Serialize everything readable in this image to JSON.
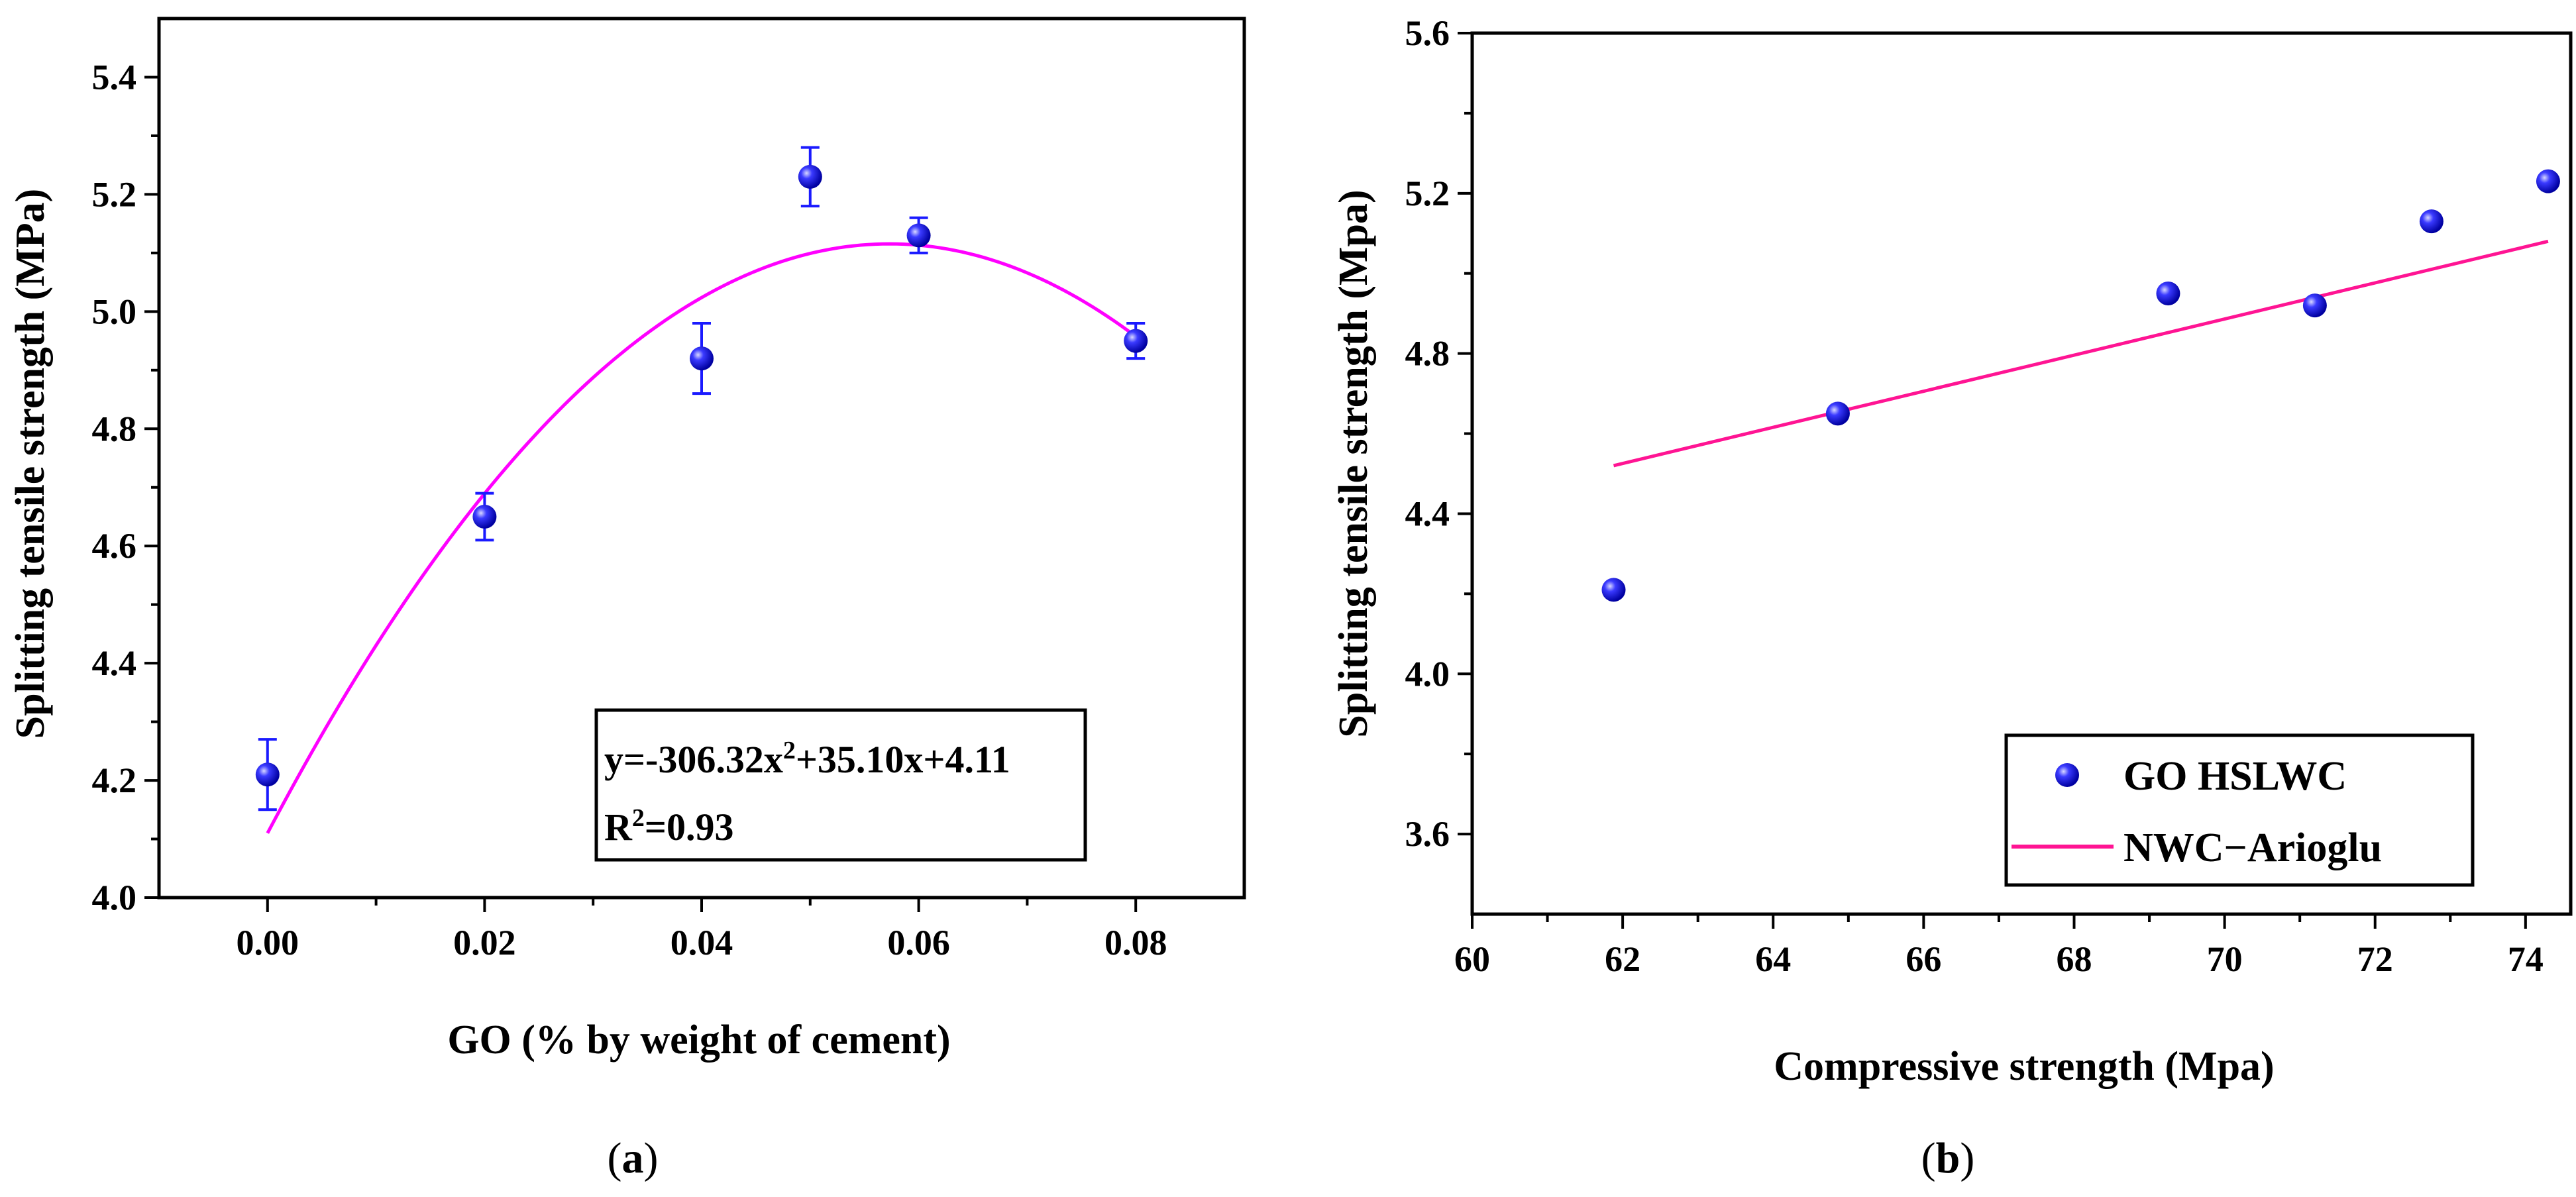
{
  "chart_data": [
    {
      "panel": "(a)",
      "panel_letter": "a",
      "type": "scatter",
      "xlabel": "GO (% by weight of cement)",
      "ylabel": "Splitting tensile strength (MPa)",
      "xlim": [
        -0.01,
        0.09
      ],
      "ylim": [
        4.0,
        5.5
      ],
      "xticks": [
        0.0,
        0.02,
        0.04,
        0.06,
        0.08
      ],
      "xtick_labels": [
        "0.00",
        "0.02",
        "0.04",
        "0.06",
        "0.08"
      ],
      "yticks": [
        4.0,
        4.2,
        4.4,
        4.6,
        4.8,
        5.0,
        5.2,
        5.4
      ],
      "ytick_labels": [
        "4.0",
        "4.2",
        "4.4",
        "4.6",
        "4.8",
        "5.0",
        "5.2",
        "5.4"
      ],
      "points": [
        {
          "x": 0.0,
          "y": 4.21,
          "err": 0.06
        },
        {
          "x": 0.02,
          "y": 4.65,
          "err": 0.04
        },
        {
          "x": 0.04,
          "y": 4.92,
          "err": 0.06
        },
        {
          "x": 0.05,
          "y": 5.23,
          "err": 0.05
        },
        {
          "x": 0.06,
          "y": 5.13,
          "err": 0.03
        },
        {
          "x": 0.08,
          "y": 4.95,
          "err": 0.03
        }
      ],
      "fit": {
        "a": -306.32,
        "b": 35.1,
        "c": 4.11,
        "x_range": [
          0.0,
          0.08
        ],
        "color": "#ff00ff",
        "equation_prefix": "y=-306.32x",
        "equation_exp": "2",
        "equation_suffix": "+35.10x+4.11",
        "r2_prefix": "R",
        "r2_exp": "2",
        "r2_suffix": "=0.93"
      },
      "marker_color": "#1a1aff"
    },
    {
      "panel": "(b)",
      "panel_letter": "b",
      "type": "scatter",
      "xlabel": "Compressive strength (Mpa)",
      "ylabel": "Splitting tensile strength (Mpa)",
      "xlim": [
        60,
        74.6
      ],
      "ylim": [
        3.4,
        5.6
      ],
      "xticks": [
        60,
        62,
        64,
        66,
        68,
        70,
        72,
        74
      ],
      "xtick_labels": [
        "60",
        "62",
        "64",
        "66",
        "68",
        "70",
        "72",
        "74"
      ],
      "yticks": [
        3.6,
        4.0,
        4.4,
        4.8,
        5.2,
        5.6
      ],
      "ytick_labels": [
        "3.6",
        "4.0",
        "4.4",
        "4.8",
        "5.2",
        "5.6"
      ],
      "series": [
        {
          "name": "GO HSLWC",
          "kind": "scatter",
          "color": "#1a1aff",
          "points": [
            {
              "x": 61.88,
              "y": 4.21
            },
            {
              "x": 64.86,
              "y": 4.65
            },
            {
              "x": 69.25,
              "y": 4.95
            },
            {
              "x": 71.2,
              "y": 4.92
            },
            {
              "x": 72.75,
              "y": 5.13
            },
            {
              "x": 74.3,
              "y": 5.23
            }
          ]
        },
        {
          "name": "NWC−Arioglu",
          "kind": "line",
          "color": "#ff1493",
          "points": [
            {
              "x": 61.88,
              "y": 4.52
            },
            {
              "x": 74.3,
              "y": 5.08
            }
          ]
        }
      ]
    }
  ]
}
